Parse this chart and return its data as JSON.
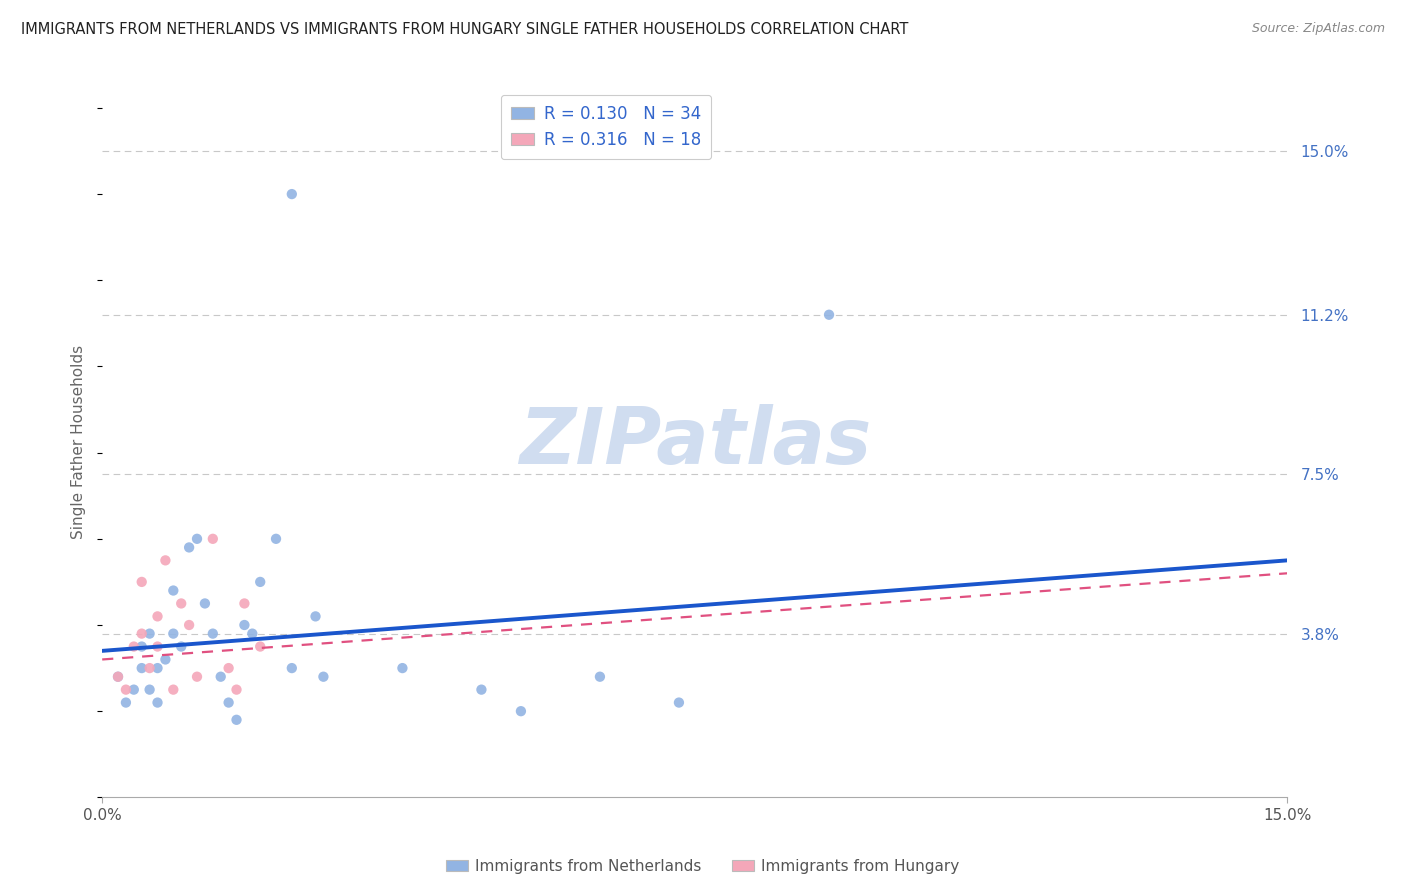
{
  "title": "IMMIGRANTS FROM NETHERLANDS VS IMMIGRANTS FROM HUNGARY SINGLE FATHER HOUSEHOLDS CORRELATION CHART",
  "source": "Source: ZipAtlas.com",
  "ylabel": "Single Father Households",
  "right_yticks": [
    "15.0%",
    "11.2%",
    "7.5%",
    "3.8%"
  ],
  "right_ytick_vals": [
    0.15,
    0.112,
    0.075,
    0.038
  ],
  "xlim": [
    0.0,
    0.15
  ],
  "ylim": [
    0.0,
    0.165
  ],
  "netherlands_line_color": "#1a56cc",
  "hungary_line_color": "#e05080",
  "netherlands_color": "#92b4e3",
  "hungary_color": "#f4a7b9",
  "background_color": "#ffffff",
  "grid_color": "#c8c8c8",
  "watermark_color": "#d0ddf0",
  "nl_line_x0": 0.0,
  "nl_line_y0": 0.034,
  "nl_line_x1": 0.15,
  "nl_line_y1": 0.055,
  "hu_line_x0": 0.0,
  "hu_line_y0": 0.032,
  "hu_line_x1": 0.15,
  "hu_line_y1": 0.052,
  "nl_scatter_x": [
    0.002,
    0.003,
    0.004,
    0.005,
    0.005,
    0.006,
    0.006,
    0.007,
    0.007,
    0.008,
    0.009,
    0.009,
    0.01,
    0.011,
    0.012,
    0.013,
    0.014,
    0.015,
    0.016,
    0.017,
    0.018,
    0.019,
    0.02,
    0.022,
    0.024,
    0.027,
    0.028,
    0.038,
    0.048,
    0.053,
    0.063,
    0.073,
    0.092,
    0.024
  ],
  "nl_scatter_y": [
    0.028,
    0.022,
    0.025,
    0.03,
    0.035,
    0.025,
    0.038,
    0.03,
    0.022,
    0.032,
    0.038,
    0.048,
    0.035,
    0.058,
    0.06,
    0.045,
    0.038,
    0.028,
    0.022,
    0.018,
    0.04,
    0.038,
    0.05,
    0.06,
    0.03,
    0.042,
    0.028,
    0.03,
    0.025,
    0.02,
    0.028,
    0.022,
    0.112,
    0.14
  ],
  "hu_scatter_x": [
    0.002,
    0.003,
    0.004,
    0.005,
    0.005,
    0.006,
    0.007,
    0.007,
    0.008,
    0.009,
    0.01,
    0.011,
    0.012,
    0.014,
    0.016,
    0.017,
    0.018,
    0.02
  ],
  "hu_scatter_y": [
    0.028,
    0.025,
    0.035,
    0.038,
    0.05,
    0.03,
    0.042,
    0.035,
    0.055,
    0.025,
    0.045,
    0.04,
    0.028,
    0.06,
    0.03,
    0.025,
    0.045,
    0.035
  ]
}
